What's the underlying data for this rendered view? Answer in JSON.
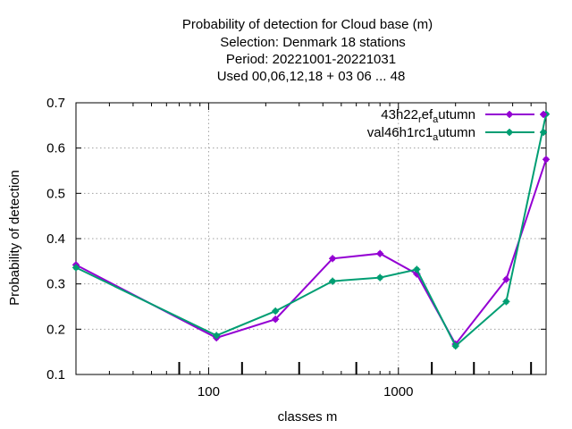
{
  "chart_data": {
    "type": "line",
    "title_lines": [
      "Probability of detection  for Cloud base (m)",
      "Selection: Denmark     18 stations",
      "Period: 20221001-20221031",
      "Used  00,06,12,18  + 03 06 ... 48"
    ],
    "xlabel": "classes m",
    "ylabel": "Probability of detection",
    "xscale": "log",
    "xlim": [
      20,
      6000
    ],
    "ylim": [
      0.1,
      0.7
    ],
    "yticks": [
      "0.1",
      "0.2",
      "0.3",
      "0.4",
      "0.5",
      "0.6",
      "0.7"
    ],
    "xticks": [
      "100",
      "1000"
    ],
    "grid": true,
    "legend_position": "top-right",
    "class_markers": [
      70,
      150,
      300,
      600,
      1500,
      2500,
      5000
    ],
    "series": [
      {
        "name": "43h22",
        "name_sub1": "r",
        "name_mid": "ef",
        "name_sub2": "a",
        "name_tail": "utumn",
        "color": "#9400d3",
        "x": [
          20,
          110,
          225,
          450,
          800,
          1250,
          2000,
          3700,
          6000
        ],
        "y": [
          0.342,
          0.181,
          0.222,
          0.356,
          0.367,
          0.322,
          0.167,
          0.31,
          0.575
        ]
      },
      {
        "name": "val46h1rc1",
        "name_sub1": "",
        "name_mid": "",
        "name_sub2": "a",
        "name_tail": "utumn",
        "color": "#009e73",
        "x": [
          20,
          110,
          225,
          450,
          800,
          1250,
          2000,
          3700,
          6000
        ],
        "y": [
          0.336,
          0.186,
          0.24,
          0.306,
          0.314,
          0.332,
          0.163,
          0.261,
          0.675
        ]
      }
    ]
  }
}
